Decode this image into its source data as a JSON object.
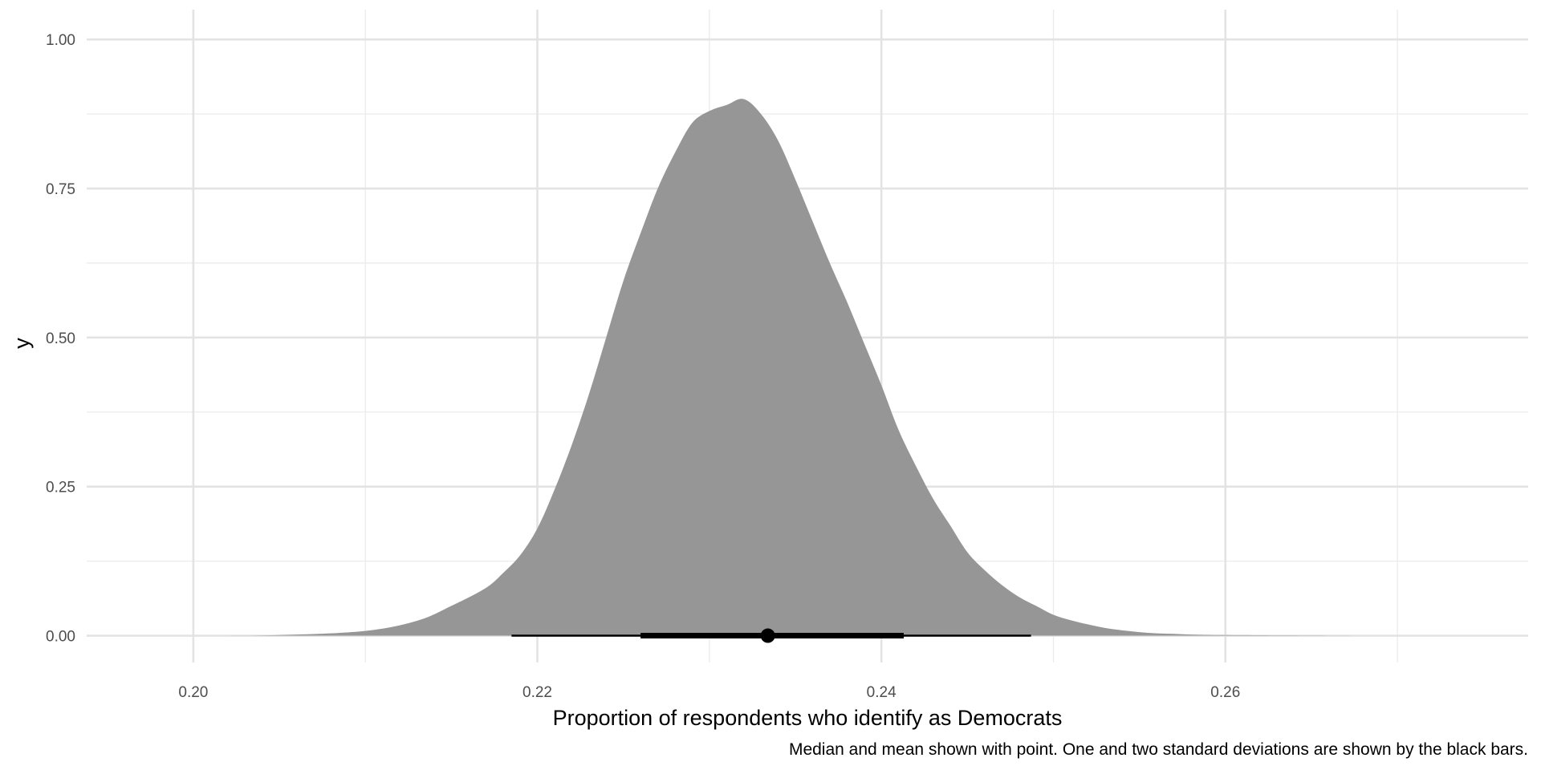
{
  "chart_data": {
    "type": "area",
    "title": "",
    "xlabel": "Proportion of respondents who identify as Democrats",
    "ylabel": "y",
    "caption": "Median and mean shown with point. One and two standard deviations are shown by the black bars.",
    "xlim": [
      0.1938,
      0.2776
    ],
    "ylim": [
      -0.045,
      1.05
    ],
    "x_ticks": [
      0.2,
      0.22,
      0.24,
      0.26
    ],
    "x_tick_labels": [
      "0.20",
      "0.22",
      "0.24",
      "0.26"
    ],
    "x_minor_ticks": [
      0.21,
      0.23,
      0.25,
      0.27
    ],
    "y_ticks": [
      0.0,
      0.25,
      0.5,
      0.75,
      1.0
    ],
    "y_tick_labels": [
      "0.00",
      "0.25",
      "0.50",
      "0.75",
      "1.00"
    ],
    "y_minor_ticks": [
      0.125,
      0.375,
      0.625,
      0.875
    ],
    "grid": true,
    "fill_color": "#969696",
    "interval_color": "#000000",
    "density": {
      "x": [
        0.2,
        0.205,
        0.21,
        0.213,
        0.215,
        0.217,
        0.218,
        0.219,
        0.22,
        0.221,
        0.222,
        0.223,
        0.224,
        0.225,
        0.226,
        0.227,
        0.228,
        0.229,
        0.23,
        0.231,
        0.232,
        0.233,
        0.234,
        0.235,
        0.236,
        0.237,
        0.238,
        0.239,
        0.24,
        0.241,
        0.242,
        0.243,
        0.244,
        0.245,
        0.246,
        0.247,
        0.248,
        0.249,
        0.25,
        0.251,
        0.252,
        0.253,
        0.254,
        0.255,
        0.256,
        0.257,
        0.258,
        0.26,
        0.265,
        0.27
      ],
      "y": [
        0.0,
        0.001,
        0.008,
        0.025,
        0.05,
        0.08,
        0.105,
        0.135,
        0.18,
        0.245,
        0.32,
        0.405,
        0.5,
        0.595,
        0.675,
        0.75,
        0.81,
        0.86,
        0.88,
        0.89,
        0.9,
        0.875,
        0.83,
        0.765,
        0.695,
        0.625,
        0.56,
        0.49,
        0.42,
        0.345,
        0.285,
        0.23,
        0.185,
        0.14,
        0.11,
        0.085,
        0.065,
        0.05,
        0.035,
        0.026,
        0.019,
        0.013,
        0.009,
        0.006,
        0.004,
        0.003,
        0.002,
        0.001,
        0.0003,
        0.0
      ]
    },
    "point_interval": {
      "point": 0.2334,
      "one_sd": [
        0.226,
        0.2413
      ],
      "two_sd": [
        0.2185,
        0.2487
      ]
    }
  }
}
